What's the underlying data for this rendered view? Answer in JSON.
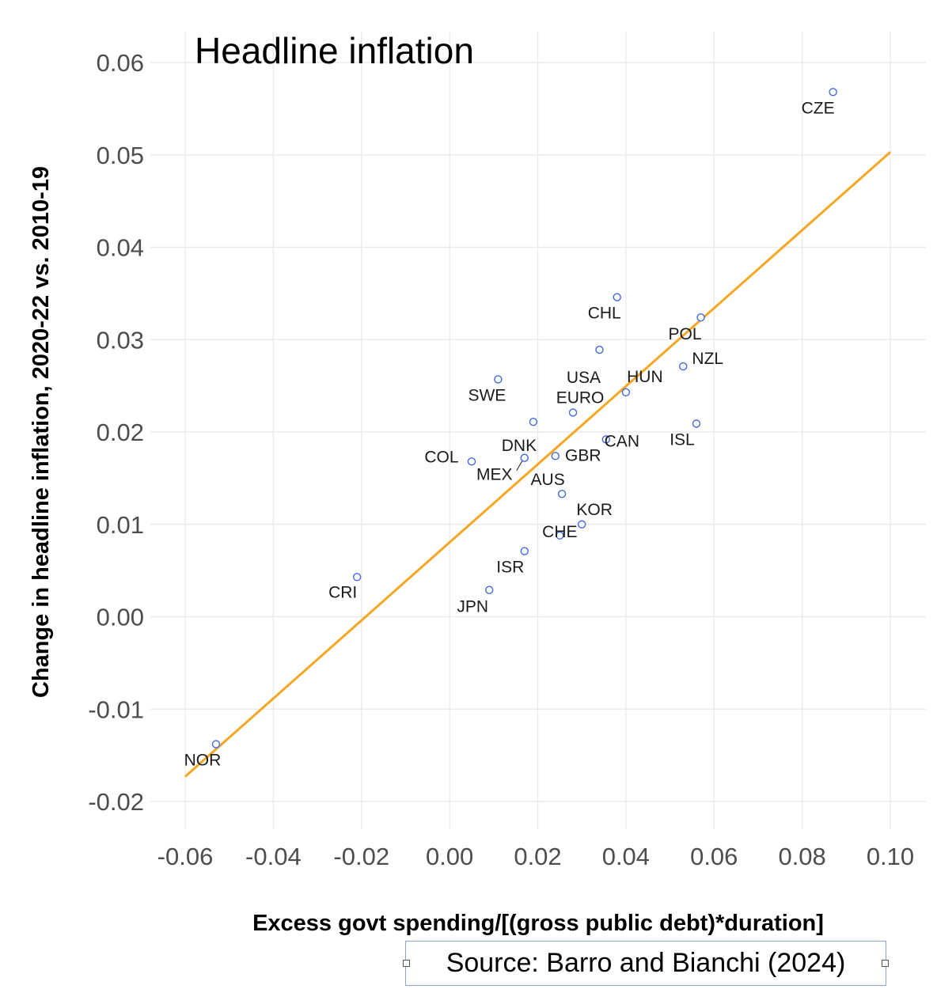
{
  "chart_data": {
    "type": "scatter",
    "title": "Headline inflation",
    "xlabel": "Excess govt spending/[(gross public debt)*duration]",
    "ylabel": "Change in headline inflation, 2020-22 vs. 2010-19",
    "xlim": [
      -0.06,
      0.1
    ],
    "ylim": [
      -0.02,
      0.06
    ],
    "x_ticks": [
      "-0.06",
      "-0.04",
      "-0.02",
      "0.00",
      "0.02",
      "0.04",
      "0.06",
      "0.08",
      "0.10"
    ],
    "y_ticks": [
      "-0.02",
      "-0.01",
      "0.00",
      "0.01",
      "0.02",
      "0.03",
      "0.04",
      "0.05",
      "0.06"
    ],
    "grid": true,
    "points": [
      {
        "label": "CZE",
        "x": 0.087,
        "y": 0.0568
      },
      {
        "label": "CHL",
        "x": 0.038,
        "y": 0.0346
      },
      {
        "label": "POL",
        "x": 0.057,
        "y": 0.0324
      },
      {
        "label": "USA",
        "x": 0.034,
        "y": 0.0289
      },
      {
        "label": "NZL",
        "x": 0.053,
        "y": 0.0271
      },
      {
        "label": "SWE",
        "x": 0.011,
        "y": 0.0257
      },
      {
        "label": "HUN",
        "x": 0.04,
        "y": 0.0243
      },
      {
        "label": "EURO",
        "x": 0.028,
        "y": 0.0221
      },
      {
        "label": "DNK",
        "x": 0.019,
        "y": 0.0211
      },
      {
        "label": "ISL",
        "x": 0.056,
        "y": 0.0209
      },
      {
        "label": "CAN",
        "x": 0.0355,
        "y": 0.0192
      },
      {
        "label": "GBR",
        "x": 0.024,
        "y": 0.0174
      },
      {
        "label": "MEX",
        "x": 0.017,
        "y": 0.0172
      },
      {
        "label": "COL",
        "x": 0.005,
        "y": 0.0168
      },
      {
        "label": "AUS",
        "x": 0.0255,
        "y": 0.0133
      },
      {
        "label": "KOR",
        "x": 0.03,
        "y": 0.01
      },
      {
        "label": "CHE",
        "x": 0.025,
        "y": 0.0088
      },
      {
        "label": "ISR",
        "x": 0.017,
        "y": 0.0071
      },
      {
        "label": "CRI",
        "x": -0.021,
        "y": 0.0043
      },
      {
        "label": "JPN",
        "x": 0.009,
        "y": 0.0029
      },
      {
        "label": "NOR",
        "x": -0.053,
        "y": -0.0138
      }
    ],
    "fit_line": {
      "x": [
        -0.06,
        0.1
      ],
      "y": [
        -0.0173,
        0.0503
      ]
    },
    "source": "Source: Barro and Bianchi (2024)"
  }
}
